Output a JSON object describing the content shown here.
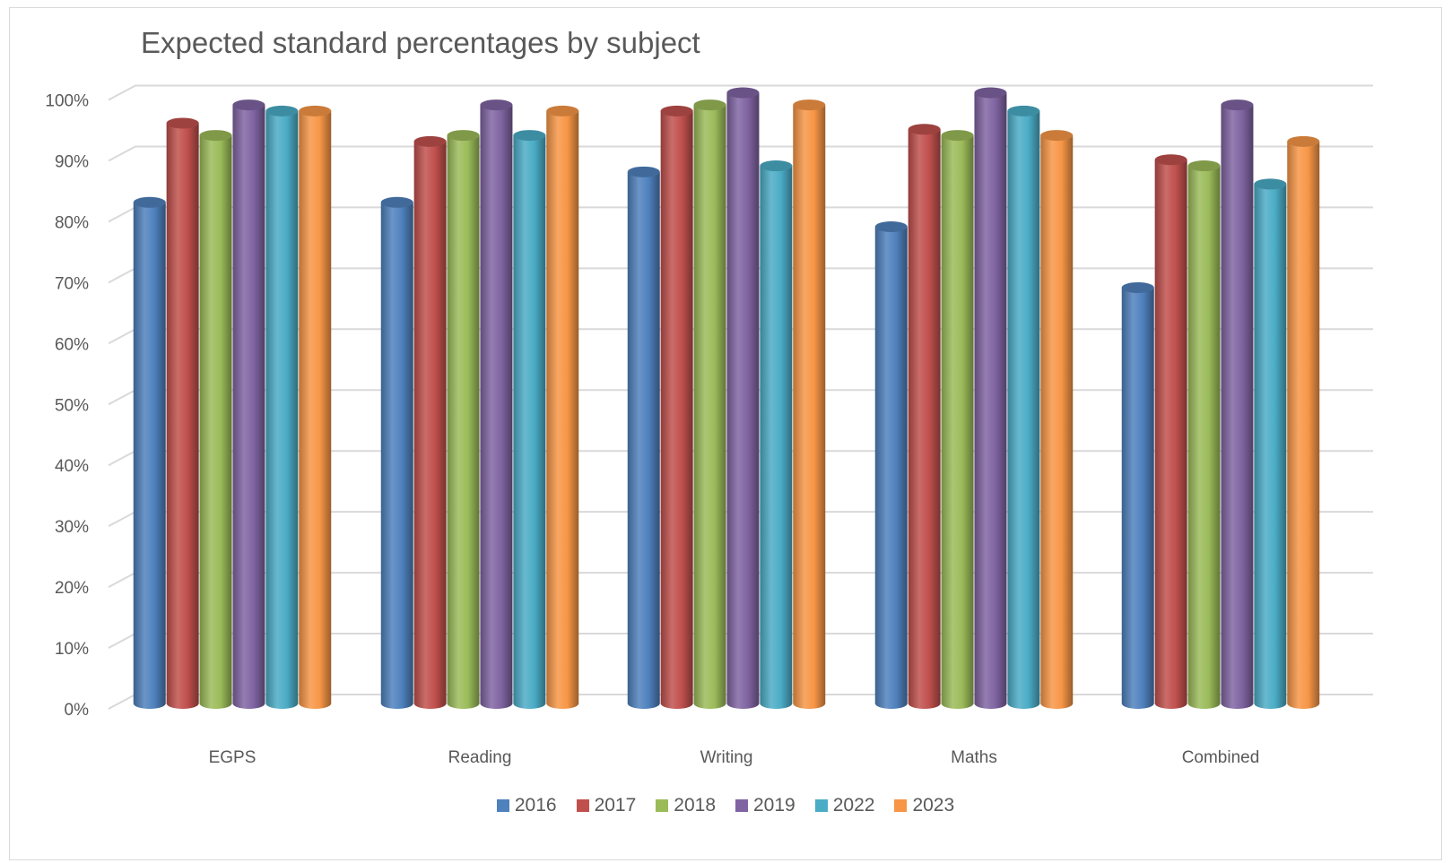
{
  "chart_data": {
    "type": "bar",
    "title": "Expected standard percentages by subject",
    "xlabel": "",
    "ylabel": "",
    "ylim": [
      0,
      100
    ],
    "yticks": [
      "0%",
      "10%",
      "20%",
      "30%",
      "40%",
      "50%",
      "60%",
      "70%",
      "80%",
      "90%",
      "100%"
    ],
    "categories": [
      "EGPS",
      "Reading",
      "Writing",
      "Maths",
      "Combined"
    ],
    "series": [
      {
        "name": "2016",
        "color": "#4f81bd",
        "values": [
          82,
          82,
          87,
          78,
          68
        ]
      },
      {
        "name": "2017",
        "color": "#c0504d",
        "values": [
          95,
          92,
          97,
          94,
          89
        ]
      },
      {
        "name": "2018",
        "color": "#9bbb59",
        "values": [
          93,
          93,
          98,
          93,
          88
        ]
      },
      {
        "name": "2019",
        "color": "#8064a2",
        "values": [
          98,
          98,
          100,
          100,
          98
        ]
      },
      {
        "name": "2022",
        "color": "#4bacc6",
        "values": [
          97,
          93,
          88,
          97,
          85
        ]
      },
      {
        "name": "2023",
        "color": "#f79646",
        "values": [
          97,
          97,
          98,
          93,
          92
        ]
      }
    ],
    "grid": true,
    "legend": "bottom"
  }
}
